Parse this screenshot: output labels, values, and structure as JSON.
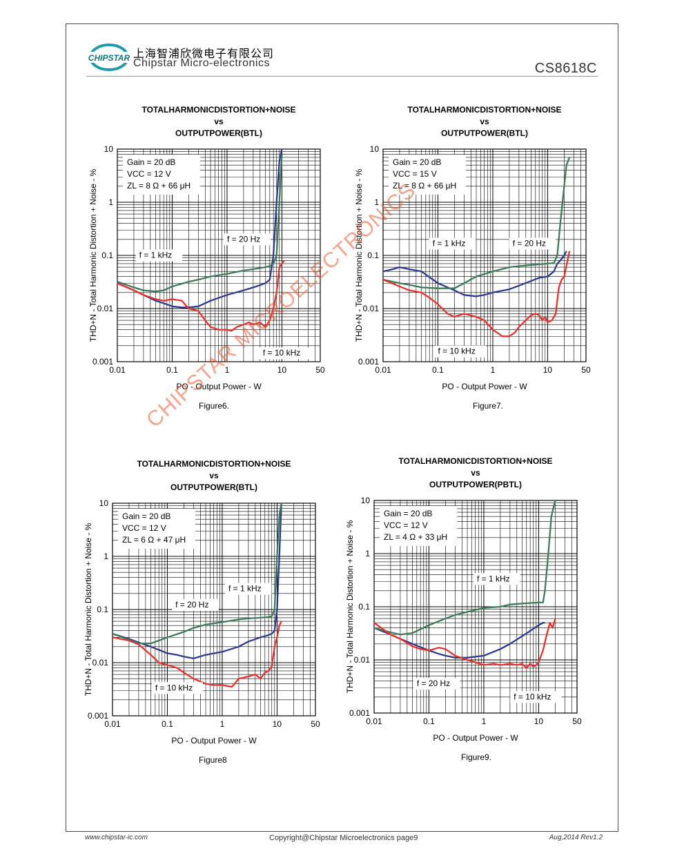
{
  "header": {
    "company_cn": "上海智浦欣微电子有限公司",
    "company_en": "Chipstar Micro-electronics",
    "logo_text": "CHIPSTAR",
    "part_number": "CS8618C"
  },
  "watermark": "CHIPSTAR MICROELECTRONICS",
  "footer": {
    "website": "www.chipstar-ic.com",
    "copyright": "Copyright@Chipstar Microelectronics    page9",
    "revision": "Aug,2014  Rev1.2"
  },
  "colors": {
    "blue": "#2e3a8c",
    "green": "#3d7a5a",
    "red": "#e8302c"
  },
  "chart_data": [
    {
      "type": "line",
      "title_lines": [
        "TOTALHARMONICDISTORTION+NOISE",
        "vs",
        "OUTPUTPOWER(BTL)"
      ],
      "caption": "Figure6.",
      "xlabel": "PO - Output Power - W",
      "ylabel": "THD+N - Total Harmonic Distortion + Noise - %",
      "x_scale": "log",
      "y_scale": "log",
      "xlim": [
        0.01,
        50
      ],
      "ylim": [
        0.001,
        10
      ],
      "x_ticks": [
        "0.01",
        "0.1",
        "1",
        "10",
        "50"
      ],
      "y_ticks": [
        "0.001",
        "0.01",
        "0.1",
        "1",
        "10"
      ],
      "conditions": [
        "Gain = 20 dB",
        "VCC = 12 V",
        "ZL = 8 Ω + 66 μH"
      ],
      "annotations": [
        {
          "text": "f = 1 kHz",
          "x": 0.025,
          "y": 0.09
        },
        {
          "text": "f = 20 Hz",
          "x": 1.0,
          "y": 0.18
        },
        {
          "text": "f = 10 kHz",
          "x": 4.5,
          "y": 0.0013
        }
      ],
      "series": [
        {
          "name": "f = 1 kHz",
          "color": "blue",
          "x": [
            0.01,
            0.02,
            0.03,
            0.05,
            0.08,
            0.1,
            0.15,
            0.2,
            0.3,
            0.5,
            1,
            2,
            3,
            5,
            6,
            7,
            8,
            9,
            10
          ],
          "y": [
            0.03,
            0.022,
            0.018,
            0.014,
            0.012,
            0.011,
            0.0105,
            0.0105,
            0.011,
            0.014,
            0.018,
            0.022,
            0.025,
            0.03,
            0.035,
            0.1,
            1,
            6,
            10
          ]
        },
        {
          "name": "f = 20 Hz",
          "color": "green",
          "x": [
            0.01,
            0.02,
            0.03,
            0.05,
            0.07,
            0.1,
            0.2,
            0.3,
            0.5,
            1,
            2,
            3,
            5,
            6,
            7,
            8,
            9,
            10
          ],
          "y": [
            0.032,
            0.025,
            0.022,
            0.021,
            0.022,
            0.026,
            0.032,
            0.035,
            0.04,
            0.045,
            0.052,
            0.055,
            0.06,
            0.063,
            0.07,
            0.1,
            1,
            8
          ]
        },
        {
          "name": "f = 10 kHz",
          "color": "red",
          "x": [
            0.01,
            0.02,
            0.03,
            0.05,
            0.07,
            0.1,
            0.15,
            0.2,
            0.3,
            0.4,
            0.5,
            0.7,
            1,
            1.2,
            1.5,
            2,
            2.5,
            3,
            4,
            5,
            6,
            7,
            8,
            9,
            10,
            11
          ],
          "y": [
            0.03,
            0.022,
            0.018,
            0.015,
            0.014,
            0.015,
            0.014,
            0.01,
            0.009,
            0.006,
            0.0045,
            0.004,
            0.004,
            0.0038,
            0.0045,
            0.005,
            0.0055,
            0.005,
            0.0055,
            0.0045,
            0.006,
            0.01,
            0.02,
            0.06,
            0.07,
            0.08
          ]
        }
      ]
    },
    {
      "type": "line",
      "title_lines": [
        "TOTALHARMONICDISTORTION+NOISE",
        "vs",
        "OUTPUTPOWER(BTL)"
      ],
      "caption": "Figure7.",
      "xlabel": "PO - Output Power - W",
      "ylabel": "THD+N - Total Harmonic Distortion + Noise - %",
      "x_scale": "log",
      "y_scale": "log",
      "xlim": [
        0.01,
        50
      ],
      "ylim": [
        0.001,
        10
      ],
      "x_ticks": [
        "0.01",
        "0.1",
        "1",
        "10",
        "50"
      ],
      "y_ticks": [
        "0.001",
        "0.01",
        "0.1",
        "1",
        "10"
      ],
      "conditions": [
        "Gain = 20 dB",
        "VCC = 15 V",
        "ZL = 8 Ω + 66 μH"
      ],
      "annotations": [
        {
          "text": "f = 1 kHz",
          "x": 0.08,
          "y": 0.15
        },
        {
          "text": "f = 20 Hz",
          "x": 2.3,
          "y": 0.15
        },
        {
          "text": "f = 10 kHz",
          "x": 0.1,
          "y": 0.0014
        }
      ],
      "series": [
        {
          "name": "f = 1 kHz",
          "color": "blue",
          "x": [
            0.01,
            0.015,
            0.02,
            0.03,
            0.05,
            0.1,
            0.2,
            0.3,
            0.5,
            0.7,
            1,
            2,
            3,
            5,
            7,
            10,
            13,
            15,
            17,
            20,
            22
          ],
          "y": [
            0.05,
            0.055,
            0.06,
            0.055,
            0.05,
            0.03,
            0.022,
            0.018,
            0.017,
            0.018,
            0.02,
            0.023,
            0.027,
            0.033,
            0.038,
            0.04,
            0.05,
            0.07,
            0.08,
            0.1,
            0.12
          ]
        },
        {
          "name": "f = 20 Hz",
          "color": "green",
          "x": [
            0.01,
            0.02,
            0.03,
            0.05,
            0.1,
            0.2,
            0.3,
            0.5,
            1,
            2,
            3,
            5,
            10,
            13,
            15,
            17,
            20,
            22,
            25
          ],
          "y": [
            0.035,
            0.03,
            0.028,
            0.025,
            0.024,
            0.024,
            0.03,
            0.04,
            0.05,
            0.06,
            0.063,
            0.066,
            0.07,
            0.072,
            0.1,
            0.4,
            2,
            5,
            7
          ]
        },
        {
          "name": "f = 10 kHz",
          "color": "red",
          "x": [
            0.01,
            0.02,
            0.03,
            0.05,
            0.07,
            0.1,
            0.15,
            0.2,
            0.3,
            0.5,
            0.7,
            1,
            1.5,
            2,
            2.5,
            3,
            4,
            5,
            6,
            7,
            8,
            9,
            10,
            12,
            14,
            16,
            18,
            20,
            25
          ],
          "y": [
            0.035,
            0.026,
            0.022,
            0.02,
            0.016,
            0.012,
            0.008,
            0.007,
            0.008,
            0.007,
            0.006,
            0.004,
            0.003,
            0.003,
            0.0035,
            0.0045,
            0.006,
            0.0075,
            0.008,
            0.0075,
            0.006,
            0.007,
            0.0055,
            0.006,
            0.008,
            0.025,
            0.035,
            0.04,
            0.12
          ]
        }
      ]
    },
    {
      "type": "line",
      "title_lines": [
        "TOTALHARMONICDISTORTION+NOISE",
        "vs",
        "OUTPUTPOWER(BTL)"
      ],
      "caption": "Figure8",
      "xlabel": "PO - Output Power - W",
      "ylabel": "THD+N - Total Harmonic Distortion + Noise - %",
      "x_scale": "log",
      "y_scale": "log",
      "xlim": [
        0.01,
        50
      ],
      "ylim": [
        0.001,
        10
      ],
      "x_ticks": [
        "0.01",
        "0.1",
        "1",
        "10",
        "50"
      ],
      "y_ticks": [
        "0.001",
        "0.01",
        "0.1",
        "1",
        "10"
      ],
      "conditions": [
        "Gain = 20 dB",
        "VCC = 12 V",
        "ZL = 6 Ω + 47 μH"
      ],
      "annotations": [
        {
          "text": "f = 1 kHz",
          "x": 1.3,
          "y": 0.22
        },
        {
          "text": "f = 20 Hz",
          "x": 0.14,
          "y": 0.11
        },
        {
          "text": "f = 10 kHz",
          "x": 0.06,
          "y": 0.003
        }
      ],
      "series": [
        {
          "name": "f = 1 kHz",
          "color": "blue",
          "x": [
            0.01,
            0.02,
            0.03,
            0.05,
            0.1,
            0.15,
            0.2,
            0.3,
            0.5,
            1,
            2,
            3,
            5,
            7,
            8,
            9,
            10,
            11,
            12
          ],
          "y": [
            0.035,
            0.028,
            0.024,
            0.02,
            0.015,
            0.014,
            0.013,
            0.012,
            0.014,
            0.016,
            0.02,
            0.025,
            0.03,
            0.033,
            0.035,
            0.04,
            0.1,
            1,
            10
          ]
        },
        {
          "name": "f = 20 Hz",
          "color": "green",
          "x": [
            0.01,
            0.02,
            0.03,
            0.05,
            0.07,
            0.1,
            0.2,
            0.3,
            0.5,
            1,
            2,
            3,
            5,
            7,
            8,
            9,
            10,
            11,
            12
          ],
          "y": [
            0.035,
            0.027,
            0.023,
            0.023,
            0.026,
            0.03,
            0.038,
            0.045,
            0.052,
            0.058,
            0.065,
            0.068,
            0.07,
            0.072,
            0.075,
            0.1,
            1,
            6,
            10
          ]
        },
        {
          "name": "f = 10 kHz",
          "color": "red",
          "x": [
            0.01,
            0.02,
            0.03,
            0.05,
            0.07,
            0.1,
            0.15,
            0.2,
            0.3,
            0.5,
            0.7,
            1,
            1.5,
            2,
            3,
            4,
            5,
            6,
            7,
            8,
            9,
            10,
            11,
            12
          ],
          "y": [
            0.03,
            0.026,
            0.022,
            0.014,
            0.01,
            0.009,
            0.008,
            0.0065,
            0.005,
            0.004,
            0.0038,
            0.0038,
            0.0035,
            0.005,
            0.0055,
            0.006,
            0.005,
            0.0065,
            0.007,
            0.0085,
            0.02,
            0.03,
            0.05,
            0.06
          ]
        }
      ]
    },
    {
      "type": "line",
      "title_lines": [
        "TOTALHARMONICDISTORTION+NOISE",
        "vs",
        "OUTPUTPOWER(PBTL)"
      ],
      "caption": "Figure9.",
      "xlabel": "PO - Output Power - W",
      "ylabel": "THD+N - Total Harmonic Distortion + Noise - %",
      "x_scale": "log",
      "y_scale": "log",
      "xlim": [
        0.01,
        50
      ],
      "ylim": [
        0.001,
        10
      ],
      "x_ticks": [
        "0.01",
        "0.1",
        "1",
        "10",
        "50"
      ],
      "y_ticks": [
        "0.001",
        "0.01",
        "0.1",
        "1",
        "10"
      ],
      "conditions": [
        "Gain = 20 dB",
        "VCC = 12 V",
        "ZL = 4 Ω + 33 μH"
      ],
      "annotations": [
        {
          "text": "f = 1 kHz",
          "x": 0.75,
          "y": 0.3
        },
        {
          "text": "f = 20 Hz",
          "x": 0.06,
          "y": 0.0032
        },
        {
          "text": "f = 10 kHz",
          "x": 3.5,
          "y": 0.0018
        }
      ],
      "series": [
        {
          "name": "f = 1 kHz",
          "color": "blue",
          "x": [
            0.01,
            0.02,
            0.03,
            0.05,
            0.1,
            0.15,
            0.2,
            0.3,
            0.5,
            1,
            2,
            3,
            5,
            7,
            10,
            12,
            13
          ],
          "y": [
            0.04,
            0.03,
            0.025,
            0.02,
            0.015,
            0.013,
            0.012,
            0.011,
            0.011,
            0.012,
            0.016,
            0.02,
            0.028,
            0.035,
            0.045,
            0.05,
            0.05
          ]
        },
        {
          "name": "f = 20 Hz",
          "color": "green",
          "x": [
            0.01,
            0.02,
            0.03,
            0.05,
            0.1,
            0.2,
            0.3,
            0.5,
            1,
            2,
            3,
            5,
            10,
            12,
            13,
            15,
            17,
            20
          ],
          "y": [
            0.04,
            0.033,
            0.03,
            0.032,
            0.045,
            0.06,
            0.07,
            0.08,
            0.095,
            0.1,
            0.11,
            0.115,
            0.12,
            0.12,
            0.2,
            1,
            5,
            10
          ]
        },
        {
          "name": "f = 10 kHz",
          "color": "red",
          "x": [
            0.01,
            0.02,
            0.03,
            0.05,
            0.07,
            0.1,
            0.15,
            0.2,
            0.3,
            0.5,
            0.7,
            1,
            1.5,
            2,
            3,
            4,
            5,
            6,
            7,
            8,
            9,
            10,
            12,
            14,
            16,
            18,
            20
          ],
          "y": [
            0.05,
            0.03,
            0.025,
            0.018,
            0.016,
            0.015,
            0.017,
            0.016,
            0.012,
            0.01,
            0.009,
            0.008,
            0.0085,
            0.008,
            0.0085,
            0.008,
            0.0085,
            0.007,
            0.0085,
            0.0075,
            0.008,
            0.009,
            0.015,
            0.03,
            0.05,
            0.04,
            0.06
          ]
        }
      ]
    }
  ]
}
